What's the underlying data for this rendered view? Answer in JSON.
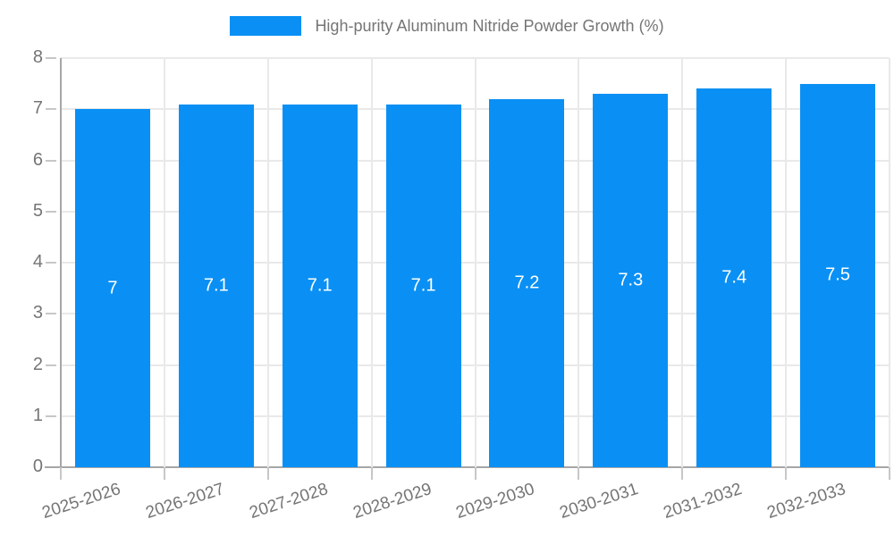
{
  "chart_data": {
    "type": "bar",
    "legend": "High-purity Aluminum Nitride Powder Growth (%)",
    "legend_position": "top",
    "categories": [
      "2025-2026",
      "2026-2027",
      "2027-2028",
      "2028-2029",
      "2029-2030",
      "2030-2031",
      "2031-2032",
      "2032-2033"
    ],
    "values": [
      7,
      7.1,
      7.1,
      7.1,
      7.2,
      7.3,
      7.4,
      7.5
    ],
    "bar_labels": [
      "7",
      "7.1",
      "7.1",
      "7.1",
      "7.2",
      "7.3",
      "7.4",
      "7.5"
    ],
    "xlabel": "",
    "ylabel": "",
    "ylim": [
      0,
      8
    ],
    "yticks": [
      0,
      1,
      2,
      3,
      4,
      5,
      6,
      7,
      8
    ],
    "grid": true,
    "colors": {
      "bar": "#0a90f4",
      "bar_value_text": "#ffffff",
      "axis_text": "#757575",
      "gridline": "#e9e9e9",
      "axis_line": "#a6a6a6",
      "tick": "#c7c7c7"
    }
  }
}
